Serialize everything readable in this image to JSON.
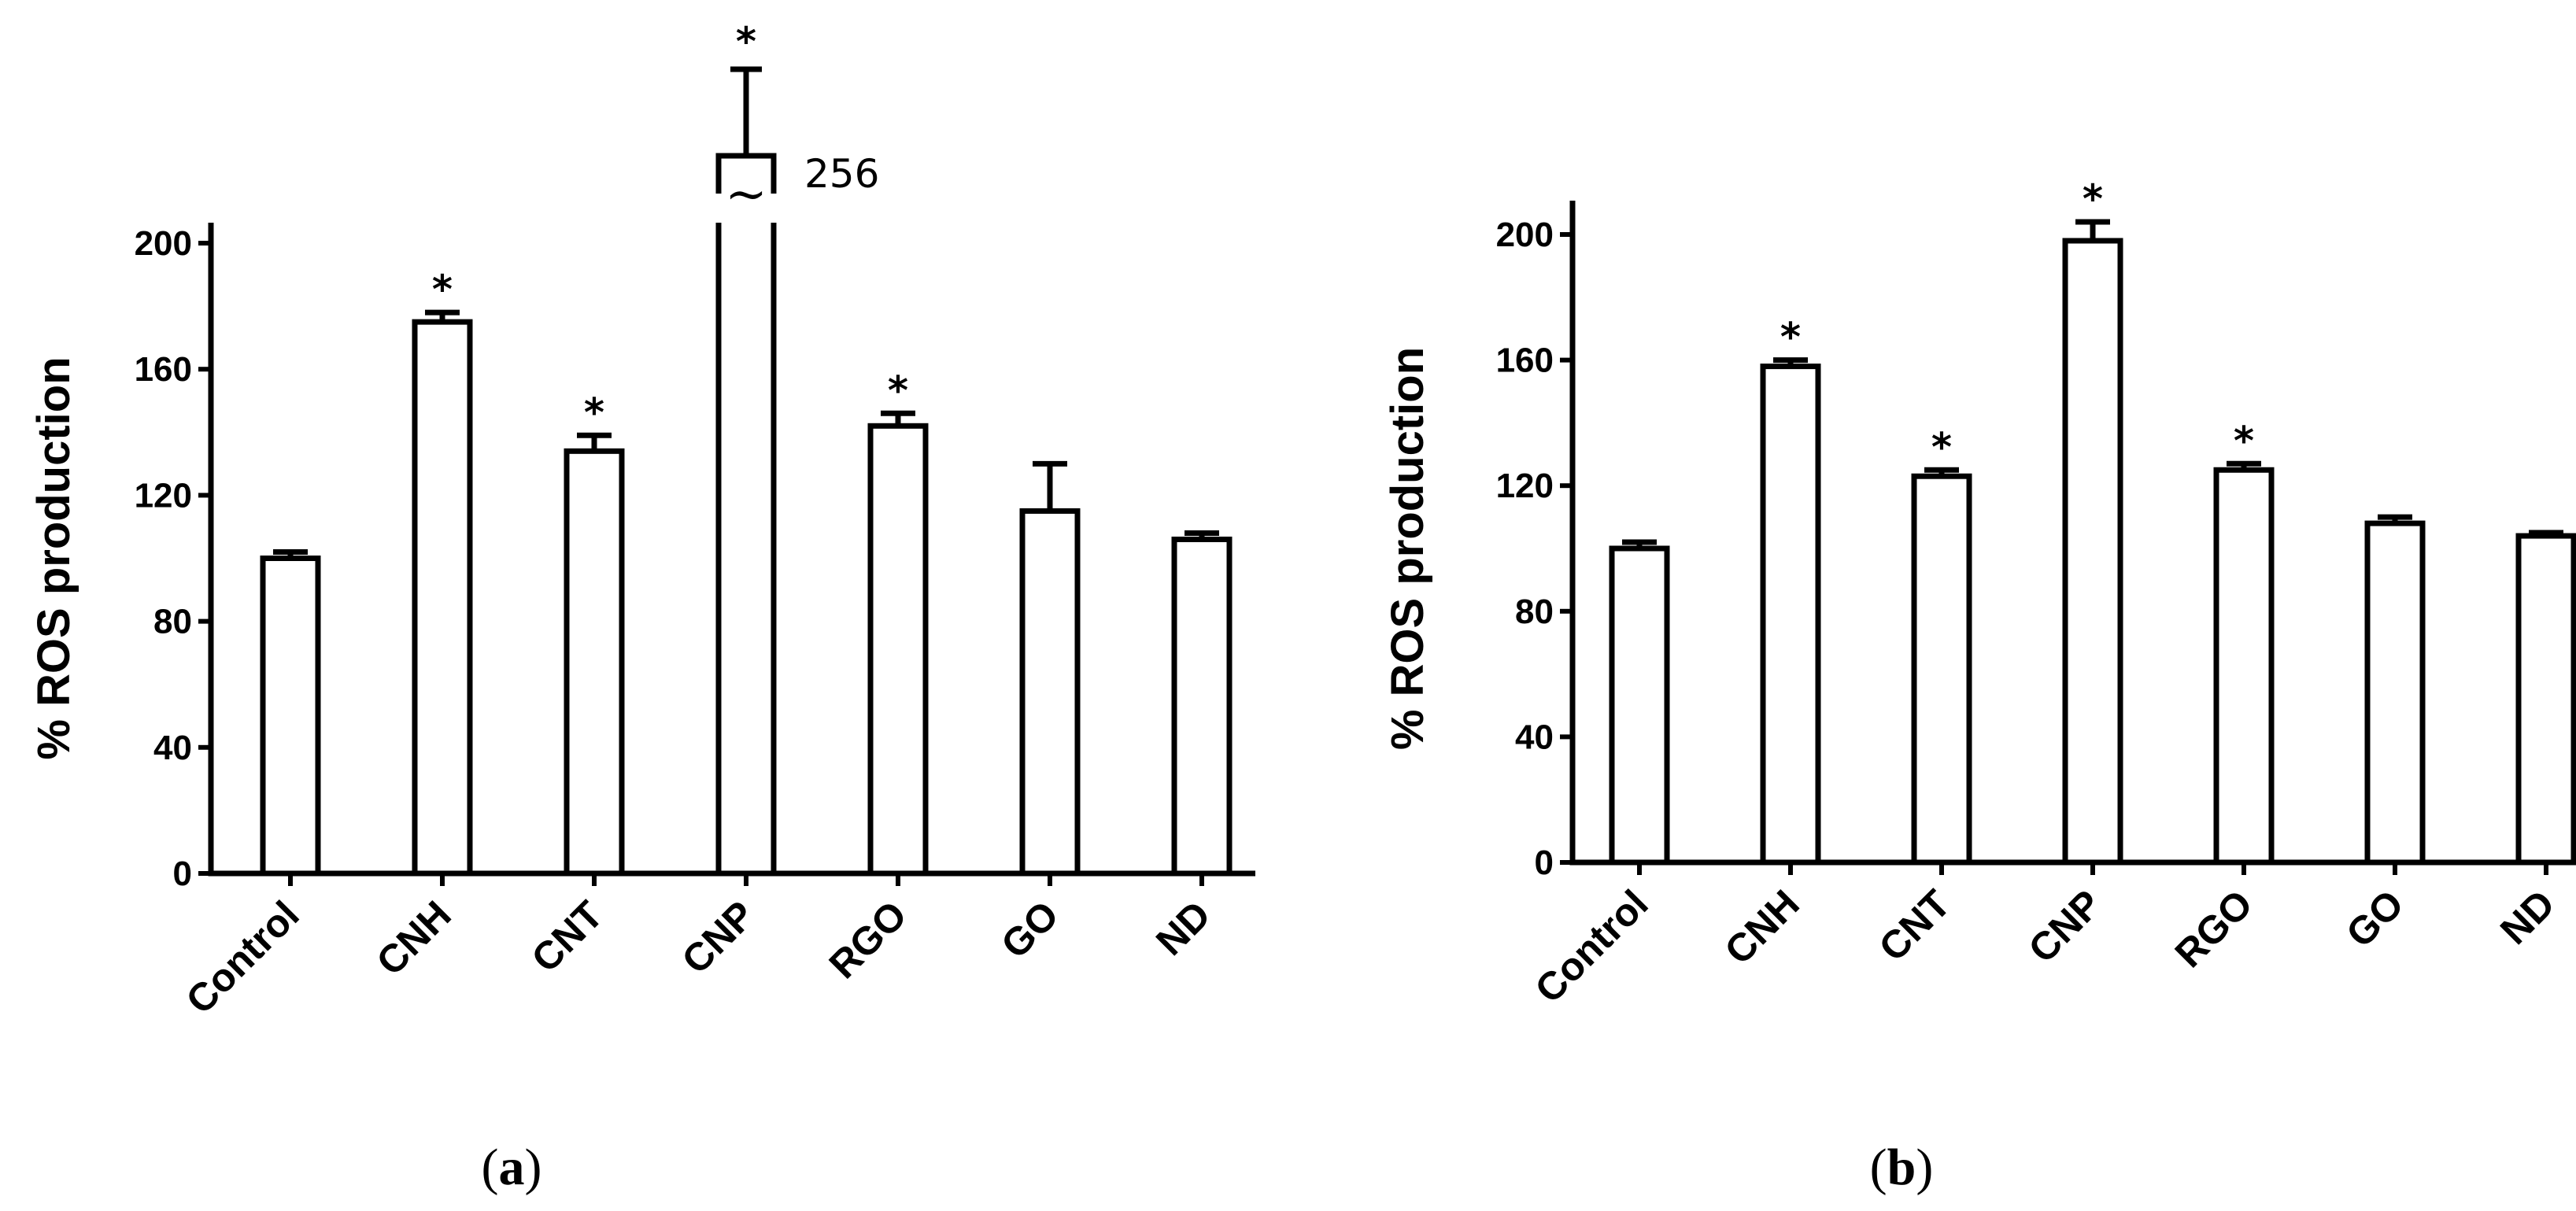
{
  "chart_data": [
    {
      "type": "bar",
      "panel": "a",
      "caption": {
        "open": "(",
        "letter": "a",
        "close": ")"
      },
      "ylabel": "% ROS production",
      "xlabel": "",
      "ylim": [
        0,
        200
      ],
      "yticks": [
        0,
        40,
        80,
        120,
        160,
        200
      ],
      "categories": [
        "Control",
        "CNH",
        "CNT",
        "CNP",
        "RGO",
        "GO",
        "ND"
      ],
      "series": [
        {
          "values": [
            100,
            175,
            134,
            256,
            142,
            115,
            106
          ],
          "errors": [
            2,
            3,
            5,
            14,
            4,
            15,
            2
          ],
          "significant": [
            false,
            true,
            true,
            true,
            true,
            false,
            false
          ]
        }
      ],
      "significance_marker": "*",
      "axis_break": {
        "category": "CNP",
        "symbol": "~",
        "label": "256"
      },
      "grid": false,
      "legend": "none"
    },
    {
      "type": "bar",
      "panel": "b",
      "caption": {
        "open": "(",
        "letter": "b",
        "close": ")"
      },
      "ylabel": "% ROS production",
      "xlabel": "",
      "ylim": [
        0,
        200
      ],
      "yticks": [
        0,
        40,
        80,
        120,
        160,
        200
      ],
      "categories": [
        "Control",
        "CNH",
        "CNT",
        "CNP",
        "RGO",
        "GO",
        "ND"
      ],
      "series": [
        {
          "values": [
            100,
            158,
            123,
            198,
            125,
            108,
            104
          ],
          "errors": [
            2,
            2,
            2,
            6,
            2,
            2,
            1
          ],
          "significant": [
            false,
            true,
            true,
            true,
            true,
            false,
            false
          ]
        }
      ],
      "significance_marker": "*",
      "grid": false,
      "legend": "none"
    }
  ]
}
